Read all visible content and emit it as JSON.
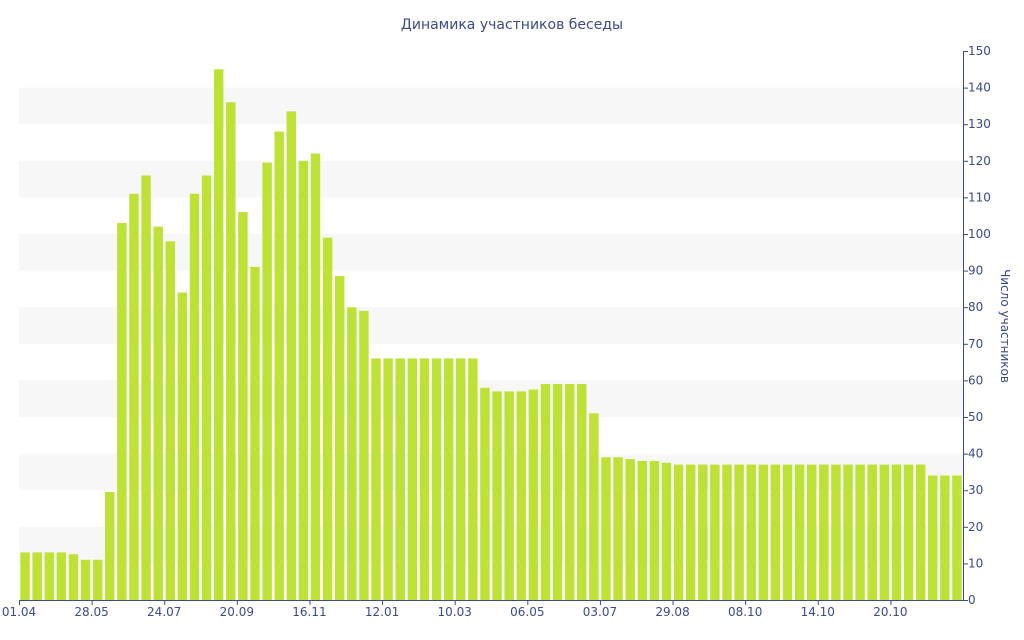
{
  "chart_data": {
    "type": "bar",
    "title": "Динамика участников беседы",
    "xlabel": "",
    "ylabel": "Число участников",
    "ylim": [
      0,
      150
    ],
    "y_ticks": [
      0,
      10,
      20,
      30,
      40,
      50,
      60,
      70,
      80,
      90,
      100,
      110,
      120,
      130,
      140,
      150
    ],
    "y_axis_position": "right",
    "grid": "alternating horizontal bands",
    "x_tick_labels": [
      "01.04",
      "28.05",
      "24.07",
      "20.09",
      "16.11",
      "12.01",
      "10.03",
      "06.05",
      "03.07",
      "29.08",
      "08.10",
      "14.10",
      "20.10"
    ],
    "bar_color": "#bde134",
    "band_color": "#f7f7f7",
    "text_color": "#3a4a8a",
    "values": [
      13,
      13,
      13,
      13,
      12.5,
      11,
      11,
      29.5,
      103,
      111,
      116,
      102,
      98,
      84,
      111,
      116,
      145,
      136,
      106,
      91,
      119.5,
      128,
      133.5,
      120,
      122,
      99,
      88.5,
      80,
      79,
      66,
      66,
      66,
      66,
      66,
      66,
      66,
      66,
      66,
      58,
      57,
      57,
      57,
      57.5,
      59,
      59,
      59,
      59,
      51,
      39,
      39,
      38.5,
      38,
      38,
      37.5,
      37,
      37,
      37,
      37,
      37,
      37,
      37,
      37,
      37,
      37,
      37,
      37,
      37,
      37,
      37,
      37,
      37,
      37,
      37,
      37,
      37,
      34,
      34,
      34
    ]
  }
}
